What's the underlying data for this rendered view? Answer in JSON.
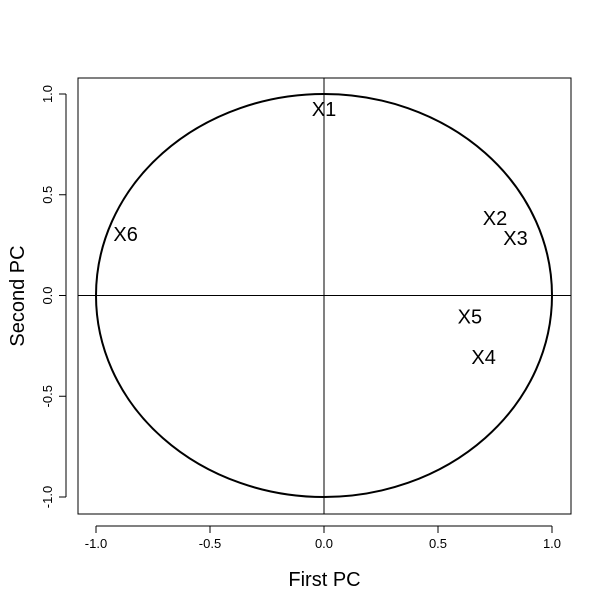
{
  "chart_data": {
    "type": "scatter",
    "title": "",
    "xlabel": "First PC",
    "ylabel": "Second PC",
    "xlim": [
      -1.0,
      1.0
    ],
    "ylim": [
      -1.0,
      1.0
    ],
    "x_ticks": [
      -1.0,
      -0.5,
      0.0,
      0.5,
      1.0
    ],
    "x_tick_labels": [
      "-1.0",
      "-0.5",
      "0.0",
      "0.5",
      "1.0"
    ],
    "y_ticks": [
      -1.0,
      -0.5,
      0.0,
      0.5,
      1.0
    ],
    "y_tick_labels": [
      "-1.0",
      "-0.5",
      "0.0",
      "0.5",
      "1.0"
    ],
    "grid": false,
    "legend": "none",
    "reference_circle_radius": 1.0,
    "reference_lines": {
      "x": 0.0,
      "y": 0.0
    },
    "points": [
      {
        "label": "X1",
        "x": 0.0,
        "y": 0.92
      },
      {
        "label": "X2",
        "x": 0.75,
        "y": 0.38
      },
      {
        "label": "X3",
        "x": 0.84,
        "y": 0.28
      },
      {
        "label": "X4",
        "x": 0.7,
        "y": -0.31
      },
      {
        "label": "X5",
        "x": 0.64,
        "y": -0.11
      },
      {
        "label": "X6",
        "x": -0.87,
        "y": 0.3
      }
    ],
    "colors": {
      "ink": "#000000",
      "background": "#ffffff"
    }
  }
}
